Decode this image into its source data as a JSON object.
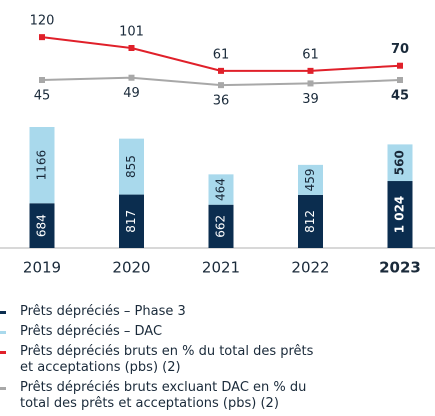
{
  "chart_data": {
    "type": "bar-line",
    "categories": [
      "2019",
      "2020",
      "2021",
      "2022",
      "2023"
    ],
    "ylim": [
      0,
      1850
    ],
    "y2lim": [
      10,
      150
    ],
    "series": [
      {
        "name": "Prêts dépréciés – Phase 3",
        "color": "#0b2d4f",
        "type": "bar",
        "values": [
          684,
          817,
          662,
          812,
          1024
        ],
        "value_labels": [
          "684",
          "817",
          "662",
          "812",
          "1 024"
        ]
      },
      {
        "name": "Prêts dépréciés – DAC",
        "color": "#a9d9ec",
        "type": "bar",
        "values": [
          1166,
          855,
          464,
          459,
          560
        ]
      },
      {
        "name": "Prêts dépréciés bruts en % du total des prêts et acceptations (pbs) (2)",
        "color": "#e0202a",
        "type": "line",
        "axis": "y2",
        "values": [
          120,
          101,
          61,
          61,
          70
        ]
      },
      {
        "name": "Prêts dépréciés bruts excluant DAC en % du total des prêts et acceptations (pbs) (2)",
        "color": "#a8a8a8",
        "type": "line",
        "axis": "y2",
        "values": [
          45,
          49,
          36,
          39,
          45
        ]
      }
    ]
  }
}
